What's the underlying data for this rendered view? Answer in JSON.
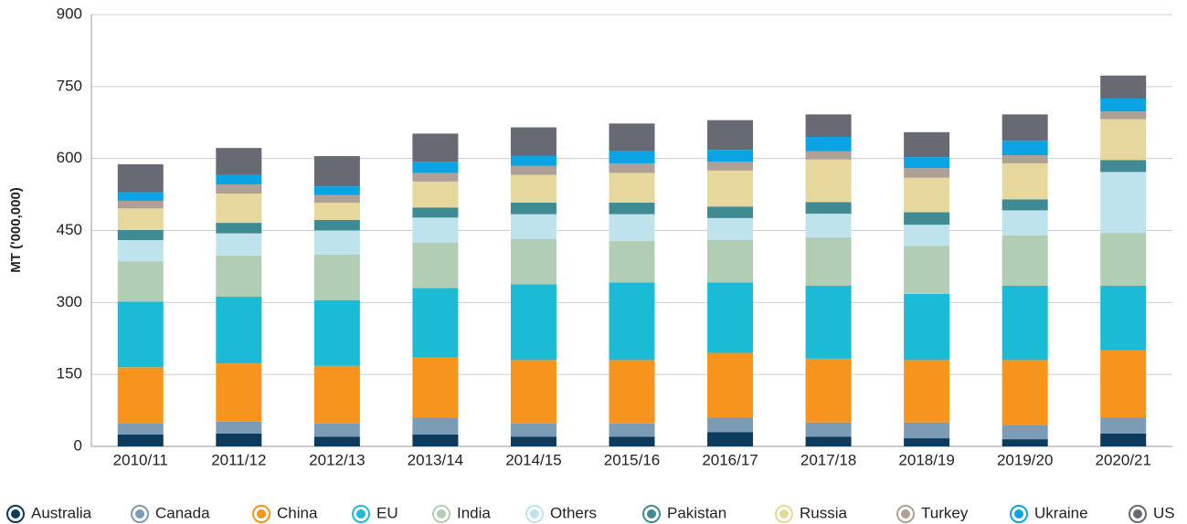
{
  "chart_data": {
    "type": "stacked-bar",
    "y_label": "MT ('000,000)",
    "categories": [
      "2010/11",
      "2011/12",
      "2012/13",
      "2013/14",
      "2014/15",
      "2015/16",
      "2016/17",
      "2017/18",
      "2018/19",
      "2019/20",
      "2020/21"
    ],
    "series": [
      {
        "name": "Australia",
        "color": "#0d3b5e",
        "values": [
          25,
          27,
          20,
          25,
          20,
          20,
          30,
          20,
          17,
          15,
          27
        ]
      },
      {
        "name": "Canada",
        "color": "#7c9bb5",
        "values": [
          24,
          25,
          28,
          35,
          28,
          28,
          30,
          30,
          33,
          30,
          33
        ]
      },
      {
        "name": "China",
        "color": "#f7941d",
        "values": [
          116,
          121,
          120,
          125,
          132,
          132,
          135,
          133,
          130,
          135,
          140
        ]
      },
      {
        "name": "EU",
        "color": "#1bbbd6",
        "values": [
          137,
          139,
          137,
          145,
          158,
          162,
          147,
          152,
          138,
          155,
          135
        ]
      },
      {
        "name": "India",
        "color": "#b1cdb4",
        "values": [
          84,
          86,
          95,
          95,
          94,
          86,
          88,
          101,
          100,
          105,
          110
        ]
      },
      {
        "name": "Others",
        "color": "#bfe3ec",
        "values": [
          44,
          46,
          50,
          52,
          52,
          56,
          46,
          49,
          44,
          52,
          127
        ]
      },
      {
        "name": "Pakistan",
        "color": "#3f8a93",
        "values": [
          21,
          22,
          22,
          21,
          24,
          24,
          24,
          24,
          26,
          23,
          25
        ]
      },
      {
        "name": "Russia",
        "color": "#e6d79c",
        "values": [
          45,
          61,
          36,
          54,
          58,
          62,
          75,
          89,
          72,
          75,
          85
        ]
      },
      {
        "name": "Turkey",
        "color": "#aea095",
        "values": [
          16,
          19,
          16,
          18,
          19,
          20,
          18,
          17,
          20,
          17,
          16
        ]
      },
      {
        "name": "Ukraine",
        "color": "#0aa4e4",
        "values": [
          18,
          20,
          18,
          23,
          21,
          25,
          25,
          30,
          23,
          30,
          27
        ]
      },
      {
        "name": "US",
        "color": "#676a72",
        "values": [
          58,
          56,
          63,
          59,
          59,
          58,
          62,
          47,
          52,
          55,
          48
        ]
      }
    ],
    "ylim": [
      0,
      900
    ],
    "yticks": [
      0,
      150,
      300,
      450,
      600,
      750,
      900
    ],
    "grid": true
  }
}
